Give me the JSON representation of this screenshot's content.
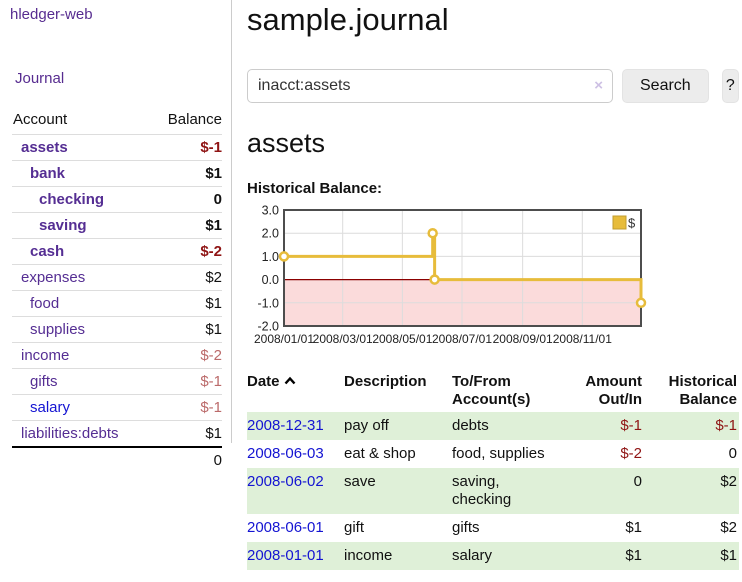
{
  "app": {
    "brand": "hledger-web"
  },
  "colors": {
    "link_purple": "#552e93",
    "link_blue": "#1414d2",
    "negative_red": "#8f1414",
    "dimmed_negative_red": "#bb6a6a",
    "row_stripe_green": "#dff0d8",
    "chart_gold": "#e7bc3b",
    "chart_negative_region_pink": "#fbdbdb",
    "chart_zero_line_red": "#8b0000"
  },
  "sidebar": {
    "nav": [
      {
        "label": "Journal"
      }
    ],
    "accounts_table": {
      "headers": {
        "account": "Account",
        "balance": "Balance"
      },
      "rows": [
        {
          "name": "assets",
          "depth": 1,
          "bold": true,
          "balance": "$-1",
          "balance_style": "negative"
        },
        {
          "name": "bank",
          "depth": 2,
          "bold": true,
          "balance": "$1",
          "balance_style": "normal"
        },
        {
          "name": "checking",
          "depth": 3,
          "bold": true,
          "balance": "0",
          "balance_style": "normal"
        },
        {
          "name": "saving",
          "depth": 3,
          "bold": true,
          "balance": "$1",
          "balance_style": "normal"
        },
        {
          "name": "cash",
          "depth": 2,
          "bold": true,
          "balance": "$-2",
          "balance_style": "negative"
        },
        {
          "name": "expenses",
          "depth": 1,
          "bold": false,
          "balance": "$2",
          "balance_style": "normal"
        },
        {
          "name": "food",
          "depth": 2,
          "bold": false,
          "balance": "$1",
          "balance_style": "normal"
        },
        {
          "name": "supplies",
          "depth": 2,
          "bold": false,
          "balance": "$1",
          "balance_style": "normal"
        },
        {
          "name": "income",
          "depth": 1,
          "bold": false,
          "balance": "$-2",
          "balance_style": "dimmed-negative"
        },
        {
          "name": "gifts",
          "depth": 2,
          "bold": false,
          "balance": "$-1",
          "balance_style": "dimmed-negative"
        },
        {
          "name": "salary",
          "depth": 2,
          "bold": false,
          "balance": "$-1",
          "balance_style": "dimmed-negative",
          "link_color": "blue"
        },
        {
          "name": "liabilities:debts",
          "depth": 1,
          "bold": false,
          "balance": "$1",
          "balance_style": "normal"
        }
      ],
      "total": "0"
    }
  },
  "header": {
    "title": "sample.journal"
  },
  "search": {
    "value": "inacct:assets",
    "clear_label": "×",
    "button": "Search",
    "help_button": "?"
  },
  "account_page": {
    "heading": "assets",
    "chart_label": "Historical Balance:"
  },
  "chart_data": {
    "type": "line",
    "step": true,
    "title": "Historical Balance",
    "legend": {
      "label": "$",
      "position": "top-right"
    },
    "series": [
      {
        "name": "$",
        "color": "#e7bc3b",
        "points": [
          {
            "x": "2008-01-01",
            "y": 1
          },
          {
            "x": "2008-06-01",
            "y": 2
          },
          {
            "x": "2008-06-03",
            "y": 0
          },
          {
            "x": "2008-12-31",
            "y": -1
          }
        ]
      }
    ],
    "x_range": [
      "2008-01-01",
      "2008-12-31"
    ],
    "x_ticks": [
      {
        "x": "2008-01-01",
        "label": "2008/01/01"
      },
      {
        "x": "2008-03-01",
        "label": "2008/03/01"
      },
      {
        "x": "2008-05-01",
        "label": "2008/05/01"
      },
      {
        "x": "2008-07-01",
        "label": "2008/07/01"
      },
      {
        "x": "2008-09-01",
        "label": "2008/09/01"
      },
      {
        "x": "2008-11-01",
        "label": "2008/11/01"
      }
    ],
    "ylim": [
      -2,
      3
    ],
    "y_ticks": [
      {
        "v": 3,
        "label": "3.0"
      },
      {
        "v": 2,
        "label": "2.0"
      },
      {
        "v": 1,
        "label": "1.0"
      },
      {
        "v": 0,
        "label": "0.0"
      },
      {
        "v": -1,
        "label": "-1.0"
      },
      {
        "v": -2,
        "label": "-2.0"
      }
    ],
    "grid": true,
    "negative_region_color": "#fbdbdb",
    "zero_line_color": "#8b0000"
  },
  "register": {
    "headers": {
      "date": "Date",
      "description": "Description",
      "accounts": "To/From Account(s)",
      "amount": "Amount Out/In",
      "balance": "Historical Balance"
    },
    "rows": [
      {
        "date": "2008-12-31",
        "description": "pay off",
        "accounts": "debts",
        "amount": "$-1",
        "balance": "$-1"
      },
      {
        "date": "2008-06-03",
        "description": "eat & shop",
        "accounts": "food, supplies",
        "amount": "$-2",
        "balance": "0"
      },
      {
        "date": "2008-06-02",
        "description": "save",
        "accounts": "saving, checking",
        "amount": "0",
        "balance": "$2"
      },
      {
        "date": "2008-06-01",
        "description": "gift",
        "accounts": "gifts",
        "amount": "$1",
        "balance": "$2"
      },
      {
        "date": "2008-01-01",
        "description": "income",
        "accounts": "salary",
        "amount": "$1",
        "balance": "$1"
      }
    ]
  }
}
